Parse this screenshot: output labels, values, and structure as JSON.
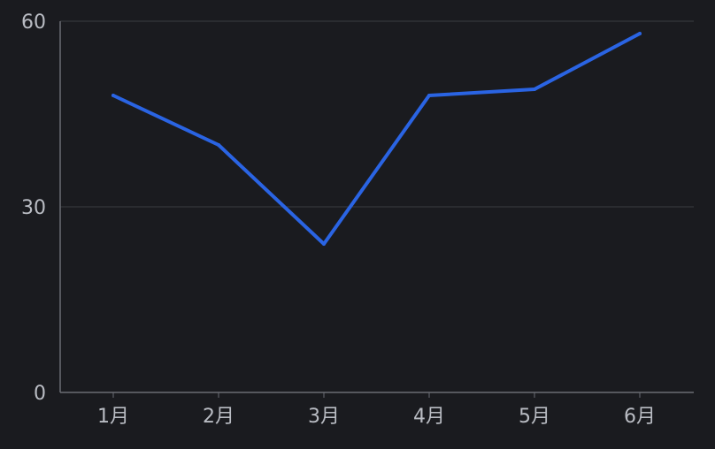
{
  "chart_data": {
    "type": "line",
    "categories": [
      "1月",
      "2月",
      "3月",
      "4月",
      "5月",
      "6月"
    ],
    "series": [
      {
        "values": [
          48,
          40,
          24,
          48,
          49,
          58
        ]
      }
    ],
    "y_ticks": [
      "0",
      "30",
      "60"
    ],
    "ylim": [
      0,
      60
    ],
    "grid": true,
    "colors": {
      "background": "#1a1b1f",
      "line": "#2a64e3",
      "grid": "#3a3c42",
      "axis": "#6a6d74",
      "text": "#b9bcc3"
    }
  }
}
